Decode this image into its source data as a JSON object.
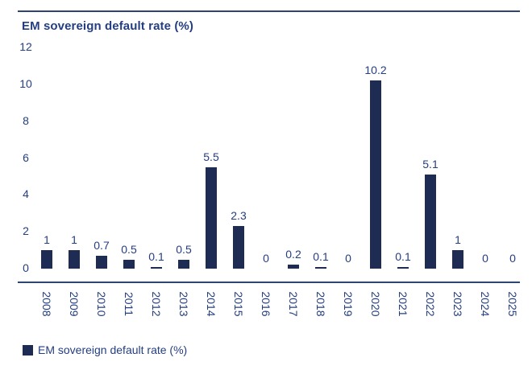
{
  "chart_data": {
    "type": "bar",
    "title": "EM sovereign default rate (%)",
    "categories": [
      "2008",
      "2009",
      "2010",
      "2011",
      "2012",
      "2013",
      "2014",
      "2015",
      "2016",
      "2017",
      "2018",
      "2019",
      "2020",
      "2021",
      "2022",
      "2023",
      "2024",
      "2025"
    ],
    "values": [
      1,
      1,
      0.7,
      0.5,
      0.1,
      0.5,
      5.5,
      2.3,
      0,
      0.2,
      0.1,
      0,
      10.2,
      0.1,
      5.1,
      1,
      0,
      0
    ],
    "value_labels": [
      "1",
      "1",
      "0.7",
      "0.5",
      "0.1",
      "0.5",
      "5.5",
      "2.3",
      "0",
      "0.2",
      "0.1",
      "0",
      "10.2",
      "0.1",
      "5.1",
      "1",
      "0",
      "0"
    ],
    "series": [
      {
        "name": "EM sovereign default rate (%)",
        "values": [
          1,
          1,
          0.7,
          0.5,
          0.1,
          0.5,
          5.5,
          2.3,
          0,
          0.2,
          0.1,
          0,
          10.2,
          0.1,
          5.1,
          1,
          0,
          0
        ]
      }
    ],
    "xlabel": "",
    "ylabel": "",
    "ylim": [
      0,
      12
    ],
    "yticks": [
      12,
      10,
      8,
      6,
      4,
      2,
      0
    ],
    "grid": "off",
    "legend_position": "bottom-left",
    "data_labels": "on",
    "x_tick_rotation_deg": 90
  },
  "legend": {
    "label": "EM sovereign default rate (%)"
  },
  "colors": {
    "bar": "#1e2c54",
    "text_navy": "#233e82",
    "rule": "#2e4573",
    "background": "#ffffff"
  }
}
